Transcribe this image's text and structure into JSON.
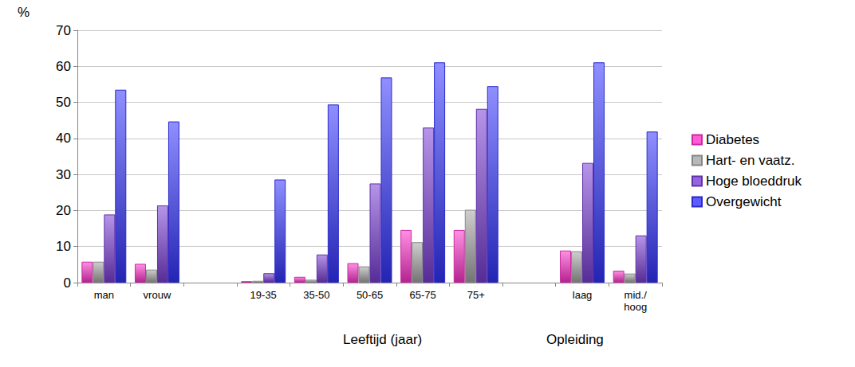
{
  "chart_data": {
    "type": "bar",
    "y_label": "%",
    "categories": [
      "man",
      "vrouw",
      null,
      "19-35",
      "35-50",
      "50-65",
      "65-75",
      "75+",
      null,
      "laag",
      "mid./\nhoog"
    ],
    "series": [
      {
        "name": "Diabetes",
        "color": "#ff33cc",
        "values": [
          5.8,
          5.2,
          null,
          0.4,
          1.6,
          5.4,
          14.6,
          14.6,
          null,
          8.9,
          3.3
        ]
      },
      {
        "name": "Hart- en vaatz.",
        "color": "#a6a6a6",
        "values": [
          5.8,
          3.6,
          null,
          0.5,
          0.8,
          4.5,
          11.2,
          20.2,
          null,
          8.7,
          2.5
        ]
      },
      {
        "name": "Hoge bloeddruk",
        "color": "#7b3fd6",
        "values": [
          18.9,
          21.4,
          null,
          2.6,
          7.8,
          27.5,
          43.0,
          48.2,
          null,
          33.2,
          13.1
        ]
      },
      {
        "name": "Overgewicht",
        "color": "#3333ff",
        "values": [
          53.5,
          44.7,
          null,
          28.6,
          49.4,
          56.9,
          61.1,
          54.5,
          null,
          61.1,
          41.9
        ]
      }
    ],
    "annotations": [
      "Leeftijd (jaar)",
      "Opleiding"
    ],
    "ylim": [
      0,
      70
    ],
    "yticks": [
      0,
      10,
      20,
      30,
      40,
      50,
      60,
      70
    ],
    "grid": true,
    "legend": "right"
  }
}
